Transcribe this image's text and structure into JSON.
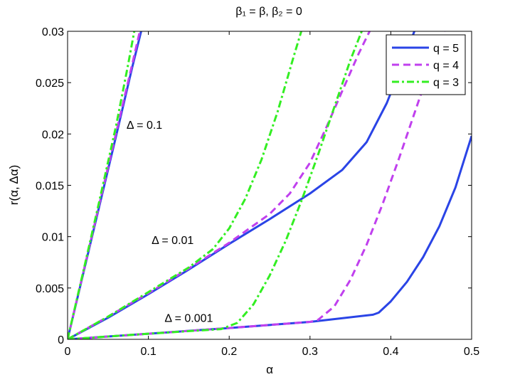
{
  "chart_data": {
    "type": "line",
    "title": "β₁ = β, β₂ = 0",
    "xlabel": "α",
    "ylabel": "r(α, Δα)",
    "xlim": [
      0,
      0.5
    ],
    "ylim": [
      0,
      0.03
    ],
    "xticks": [
      0,
      0.1,
      0.2,
      0.3,
      0.4,
      0.5
    ],
    "xtick_labels": [
      "0",
      "0.1",
      "0.2",
      "0.3",
      "0.4",
      "0.5"
    ],
    "yticks": [
      0,
      0.005,
      0.01,
      0.015,
      0.02,
      0.025,
      0.03
    ],
    "ytick_labels": [
      "0",
      "0.005",
      "0.01",
      "0.015",
      "0.02",
      "0.025",
      "0.03"
    ],
    "grid": false,
    "legend": {
      "placement": "top-right",
      "entries": [
        {
          "label": "q = 5",
          "color": "#2a44e6",
          "dash": "solid"
        },
        {
          "label": "q = 4",
          "color": "#c040ee",
          "dash": "dashed"
        },
        {
          "label": "q = 3",
          "color": "#33ee22",
          "dash": "dashdot"
        }
      ]
    },
    "annotations": [
      {
        "text": "Δ = 0.1",
        "x": 0.073,
        "y": 0.0205
      },
      {
        "text": "Δ = 0.01",
        "x": 0.104,
        "y": 0.0093
      },
      {
        "text": "Δ = 0.001",
        "x": 0.12,
        "y": 0.0017
      }
    ],
    "series": [
      {
        "name": "q = 5",
        "group": "Δ = 0.1",
        "x": [
          0,
          0.02,
          0.04,
          0.06,
          0.08,
          0.091
        ],
        "y": [
          0,
          0.0066,
          0.0132,
          0.0198,
          0.0265,
          0.03
        ]
      },
      {
        "name": "q = 4",
        "group": "Δ = 0.1",
        "x": [
          0,
          0.02,
          0.04,
          0.06,
          0.08,
          0.09
        ],
        "y": [
          0,
          0.0067,
          0.0134,
          0.0201,
          0.0268,
          0.0302
        ]
      },
      {
        "name": "q = 3",
        "group": "Δ = 0.1",
        "x": [
          0,
          0.02,
          0.04,
          0.06,
          0.075,
          0.083
        ],
        "y": [
          0,
          0.0068,
          0.0137,
          0.0208,
          0.0268,
          0.0302
        ]
      },
      {
        "name": "q = 5",
        "group": "Δ = 0.01",
        "x": [
          0,
          0.05,
          0.1,
          0.15,
          0.2,
          0.25,
          0.3,
          0.34,
          0.37,
          0.395,
          0.41,
          0.42,
          0.43
        ],
        "y": [
          0,
          0.0021,
          0.0044,
          0.0068,
          0.0093,
          0.0117,
          0.0142,
          0.0165,
          0.0192,
          0.023,
          0.026,
          0.028,
          0.0302
        ]
      },
      {
        "name": "q = 4",
        "group": "Δ = 0.01",
        "x": [
          0,
          0.05,
          0.1,
          0.15,
          0.2,
          0.25,
          0.275,
          0.3,
          0.32,
          0.34,
          0.36,
          0.375
        ],
        "y": [
          0,
          0.0022,
          0.0045,
          0.0069,
          0.0094,
          0.0122,
          0.0142,
          0.0172,
          0.0206,
          0.0242,
          0.0278,
          0.0302
        ]
      },
      {
        "name": "q = 3",
        "group": "Δ = 0.01",
        "x": [
          0,
          0.05,
          0.1,
          0.15,
          0.18,
          0.2,
          0.22,
          0.24,
          0.26,
          0.28,
          0.29
        ],
        "y": [
          0,
          0.0022,
          0.0046,
          0.007,
          0.0088,
          0.0108,
          0.0137,
          0.0175,
          0.0222,
          0.0276,
          0.0302
        ]
      },
      {
        "name": "q = 5",
        "group": "Δ = 0.001",
        "x": [
          0,
          0.1,
          0.2,
          0.3,
          0.378,
          0.385,
          0.4,
          0.42,
          0.44,
          0.46,
          0.48,
          0.5
        ],
        "y": [
          0,
          0.00055,
          0.0011,
          0.0017,
          0.0024,
          0.0026,
          0.0037,
          0.0056,
          0.008,
          0.011,
          0.0148,
          0.0198
        ]
      },
      {
        "name": "q = 4",
        "group": "Δ = 0.001",
        "x": [
          0,
          0.1,
          0.2,
          0.3,
          0.31,
          0.33,
          0.35,
          0.37,
          0.39,
          0.41,
          0.43,
          0.45,
          0.47
        ],
        "y": [
          0,
          0.00055,
          0.0011,
          0.0017,
          0.0019,
          0.0032,
          0.0058,
          0.0092,
          0.0132,
          0.0176,
          0.0222,
          0.0268,
          0.0308
        ]
      },
      {
        "name": "q = 3",
        "group": "Δ = 0.001",
        "x": [
          0,
          0.1,
          0.19,
          0.21,
          0.23,
          0.25,
          0.27,
          0.29,
          0.31,
          0.33,
          0.35,
          0.365
        ],
        "y": [
          0,
          0.00055,
          0.001,
          0.0016,
          0.0034,
          0.0062,
          0.0096,
          0.0136,
          0.018,
          0.0226,
          0.0272,
          0.0302
        ]
      }
    ]
  }
}
